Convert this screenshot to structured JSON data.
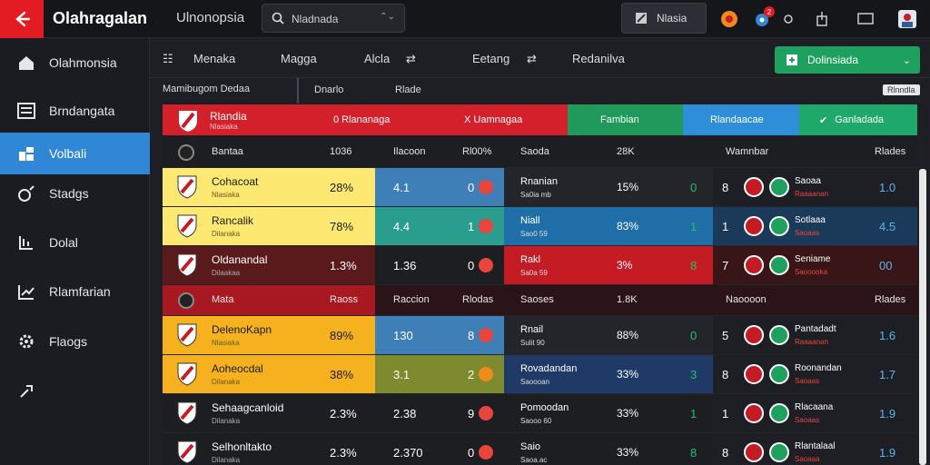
{
  "app": {
    "title": "Olahragalan",
    "subtitle": "Ulnonopsia"
  },
  "search": {
    "value": "Nladnada",
    "placeholder": "Nladnada"
  },
  "top_action": {
    "label": "Nlasia"
  },
  "notifications": {
    "count": "2"
  },
  "sidebar": {
    "items": [
      {
        "label": "Olahmonsia",
        "icon": "home-icon",
        "active": false
      },
      {
        "label": "Brndangata",
        "icon": "list-icon",
        "active": false
      },
      {
        "label": "Volbali",
        "icon": "volleyball-icon",
        "active": true
      },
      {
        "label": "Stadgs",
        "icon": "stadium-icon",
        "active": false
      },
      {
        "label": "Dolal",
        "icon": "bracket-icon",
        "active": false
      },
      {
        "label": "Rlamfarian",
        "icon": "chart-icon",
        "active": false
      },
      {
        "label": "Flaogs",
        "icon": "gear-icon",
        "active": false
      },
      {
        "label": "",
        "icon": "exit-icon",
        "active": false
      }
    ]
  },
  "columns": {
    "c1": "Menaka",
    "c2": "Magga",
    "c3": "Alcla",
    "c4": "Eetang",
    "c5": "Redanilva"
  },
  "export": {
    "label": "Dolinsiada"
  },
  "filters": {
    "label": "Mamibugom Dedaa",
    "a": "Dnarlo",
    "b": "Rlade",
    "chip": "Rlnndla"
  },
  "summary": [
    {
      "label": "Rlandia",
      "sub": "Nlasiaka",
      "color": "#d3202a"
    },
    {
      "label": "0 Rlananaga",
      "sub": "",
      "color": "#d3202a"
    },
    {
      "label": "X Uamnagaa",
      "sub": "",
      "color": "#d3202a"
    },
    {
      "label": "Fambian",
      "sub": "",
      "color": "#1f9a5b"
    },
    {
      "label": "Rlandaacae",
      "sub": "",
      "color": "#2e8fd8"
    },
    {
      "label": "Ganladada",
      "sub": "",
      "color": "#1ea86a"
    }
  ],
  "table_header": {
    "name": "Bantaa",
    "pct": "1036",
    "mid_label": "Ilacoon",
    "mid_pct": "Rl00%",
    "right_label": "Saoda",
    "right_val": "28K",
    "far_label": "Wamnbar",
    "far_val": "Rlades"
  },
  "section_header": {
    "name": "Mata",
    "pct": "Raoss",
    "mid_label": "Raccion",
    "mid_pct": "Rlodas",
    "right_label": "Saoses",
    "right_val": "1.8K",
    "far_label": "Naoooon",
    "far_val": "Rlades"
  },
  "rows_top": [
    {
      "name": "Cohacoat",
      "sub": "Nlasiaka",
      "pct": "28%",
      "mid_val": "4.1",
      "mid_num": "0",
      "right_name": "Rnanian",
      "right_sub": "Sa0ia mb",
      "right_pct": "15%",
      "right_num": "0",
      "far_num": "8",
      "far_name": "Saoaa",
      "far_sub": "Raaaanan",
      "far_val": "1.0",
      "left_bg": "#fde872",
      "mid_bg": "#3e7fb8",
      "right_bg": "#23252b",
      "far_bg": "#1e1f25"
    },
    {
      "name": "Rancalik",
      "sub": "Dilanaka",
      "pct": "78%",
      "mid_val": "4.4",
      "mid_num": "1",
      "right_name": "Niall",
      "right_sub": "Sao0 59",
      "right_pct": "83%",
      "right_num": "1",
      "far_num": "1",
      "far_name": "Sotlaaa",
      "far_sub": "Saoaas",
      "far_val": "4.5",
      "left_bg": "#fde872",
      "mid_bg": "#2a9d8f",
      "right_bg": "#1f6ea8",
      "far_bg": "#1b3a5a"
    },
    {
      "name": "Oldanandal",
      "sub": "Dilaakaa",
      "pct": "1.3%",
      "mid_val": "1.36",
      "mid_num": "0",
      "right_name": "Rakl",
      "right_sub": "Sa0a 59",
      "right_pct": "3%",
      "right_num": "8",
      "far_num": "7",
      "far_name": "Seniame",
      "far_sub": "Saooooka",
      "far_val": "00",
      "left_bg": "#5a1a1c",
      "mid_bg": "#1d1e22",
      "right_bg": "#c41b24",
      "far_bg": "#3a1518"
    }
  ],
  "rows_bottom": [
    {
      "name": "DelenoKapn",
      "sub": "Nlasiaka",
      "pct": "89%",
      "mid_val": "130",
      "mid_num": "8",
      "right_name": "Rnail",
      "right_sub": "Sulit 90",
      "right_pct": "88%",
      "right_num": "0",
      "far_num": "5",
      "far_name": "Pantadadt",
      "far_sub": "Raaaanan",
      "far_val": "1.6",
      "left_bg": "#f6b11f",
      "mid_bg": "#3e7fb8",
      "right_bg": "#23252b",
      "far_bg": "#1e1f25"
    },
    {
      "name": "Aoheocdal",
      "sub": "Dilanaka",
      "pct": "38%",
      "mid_val": "3.1",
      "mid_num": "2",
      "right_name": "Rovadandan",
      "right_sub": "Saoooan",
      "right_pct": "33%",
      "right_num": "3",
      "far_num": "8",
      "far_name": "Roonandan",
      "far_sub": "Saoaas",
      "far_val": "1.7",
      "left_bg": "#f6b11f",
      "mid_bg": "#7d8a2e",
      "right_bg": "#1f3a66",
      "far_bg": "#1e1f25"
    },
    {
      "name": "Sehaagcanloid",
      "sub": "Dilanaka",
      "pct": "2.3%",
      "mid_val": "2.38",
      "mid_num": "9",
      "right_name": "Pomoodan",
      "right_sub": "Saooo 60",
      "right_pct": "33%",
      "right_num": "1",
      "far_num": "1",
      "far_name": "Rlacaana",
      "far_sub": "Saoaas",
      "far_val": "1.9",
      "left_bg": "#1d1e22",
      "mid_bg": "#1d1e22",
      "right_bg": "#1d1e22",
      "far_bg": "#1e1f25"
    },
    {
      "name": "Selhonltakto",
      "sub": "Dilanaka",
      "pct": "2.3%",
      "mid_val": "2.370",
      "mid_num": "0",
      "right_name": "Saio",
      "right_sub": "Saoa.ac",
      "right_pct": "33%",
      "right_num": "8",
      "far_num": "8",
      "far_name": "Rlantalaal",
      "far_sub": "Saoaaa",
      "far_val": "1.9",
      "left_bg": "#1d1e22",
      "mid_bg": "#1d1e22",
      "right_bg": "#1d1e22",
      "far_bg": "#1e1f25"
    }
  ],
  "colors": {
    "accent_red": "#e31b23",
    "active_blue": "#2f87d6",
    "green": "#1ea05e",
    "yellow": "#fde872",
    "orange": "#f6b11f",
    "dark_red": "#c41b24"
  }
}
